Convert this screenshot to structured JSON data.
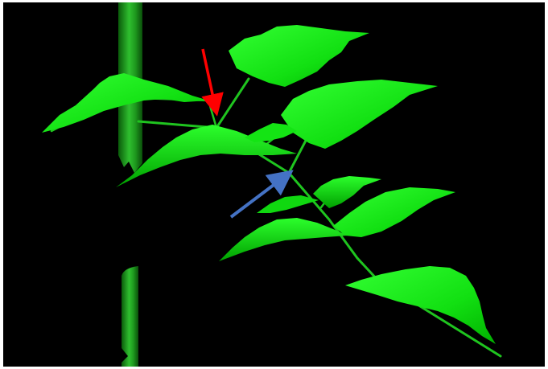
{
  "image": {
    "background_color": "#000000",
    "border_color": "#ffffff",
    "plant_colors": {
      "leaf_light": "#2bff2b",
      "leaf_mid": "#00dd00",
      "leaf_dark": "#00a800",
      "stem": "#1fc41f",
      "main_stem_dark": "#0d6b0d",
      "main_stem_light": "#33cc33"
    },
    "annotations": [
      {
        "id": "red-arrow",
        "color": "#ff0000"
      },
      {
        "id": "blue-arrow",
        "color": "#4472c4"
      }
    ]
  }
}
